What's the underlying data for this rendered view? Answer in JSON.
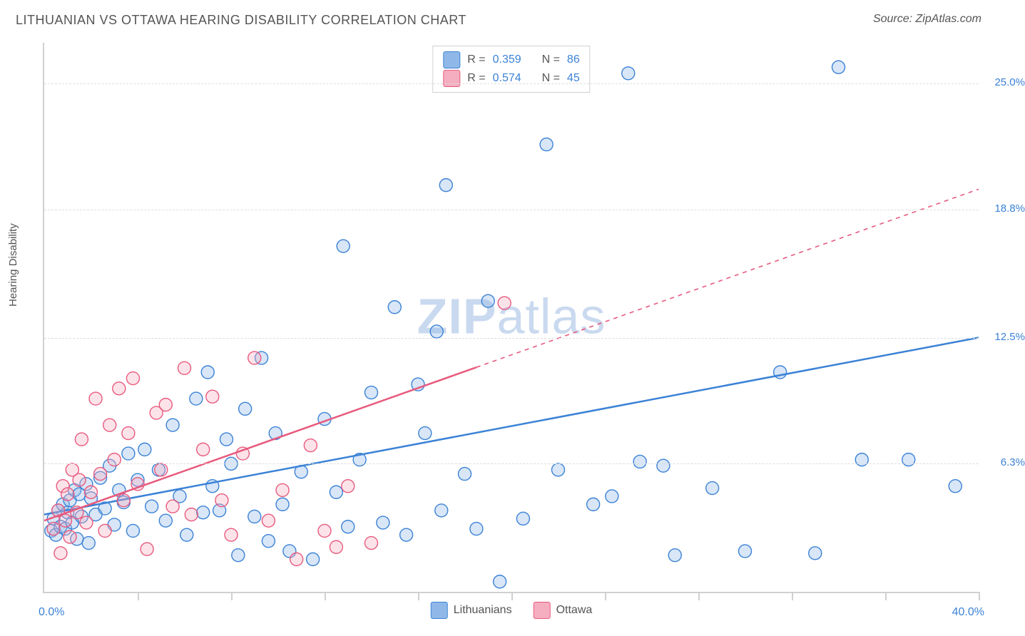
{
  "title": "LITHUANIAN VS OTTAWA HEARING DISABILITY CORRELATION CHART",
  "source": "Source: ZipAtlas.com",
  "y_axis_label": "Hearing Disability",
  "chart": {
    "type": "scatter",
    "xlim": [
      0,
      40
    ],
    "ylim": [
      0,
      27
    ],
    "x_label_min": "0.0%",
    "x_label_max": "40.0%",
    "y_grid": [
      {
        "value": 6.3,
        "label": "6.3%"
      },
      {
        "value": 12.5,
        "label": "12.5%"
      },
      {
        "value": 18.8,
        "label": "18.8%"
      },
      {
        "value": 25.0,
        "label": "25.0%"
      }
    ],
    "x_ticks": [
      4,
      8,
      12,
      16,
      20,
      24,
      28,
      32,
      36,
      40
    ],
    "grid_color": "#dddddd",
    "axis_color": "#d0d0d0",
    "background_color": "#ffffff",
    "marker_radius": 9,
    "marker_fill_opacity": 0.35,
    "marker_stroke_width": 1.4,
    "title_fontsize": 18,
    "label_fontsize": 15
  },
  "series": [
    {
      "key": "lithuanians",
      "name": "Lithuanians",
      "color_stroke": "#3b82d6",
      "color_fill": "#8fb8e8",
      "R": "0.359",
      "N": "86",
      "regression": {
        "start": [
          0,
          3.8
        ],
        "end": [
          40,
          12.5
        ],
        "dash_from_x": null
      },
      "points": [
        [
          0.3,
          3.0
        ],
        [
          0.4,
          3.6
        ],
        [
          0.5,
          2.8
        ],
        [
          0.6,
          4.0
        ],
        [
          0.7,
          3.2
        ],
        [
          0.8,
          4.3
        ],
        [
          0.9,
          3.1
        ],
        [
          1.0,
          3.9
        ],
        [
          1.1,
          4.5
        ],
        [
          1.2,
          3.4
        ],
        [
          1.3,
          5.0
        ],
        [
          1.4,
          2.6
        ],
        [
          1.5,
          4.8
        ],
        [
          1.6,
          3.7
        ],
        [
          1.8,
          5.3
        ],
        [
          1.9,
          2.4
        ],
        [
          2.0,
          4.6
        ],
        [
          2.2,
          3.8
        ],
        [
          2.4,
          5.6
        ],
        [
          2.6,
          4.1
        ],
        [
          2.8,
          6.2
        ],
        [
          3.0,
          3.3
        ],
        [
          3.2,
          5.0
        ],
        [
          3.4,
          4.4
        ],
        [
          3.6,
          6.8
        ],
        [
          3.8,
          3.0
        ],
        [
          4.0,
          5.5
        ],
        [
          4.3,
          7.0
        ],
        [
          4.6,
          4.2
        ],
        [
          4.9,
          6.0
        ],
        [
          5.2,
          3.5
        ],
        [
          5.5,
          8.2
        ],
        [
          5.8,
          4.7
        ],
        [
          6.1,
          2.8
        ],
        [
          6.5,
          9.5
        ],
        [
          6.8,
          3.9
        ],
        [
          7.0,
          10.8
        ],
        [
          7.2,
          5.2
        ],
        [
          7.5,
          4.0
        ],
        [
          7.8,
          7.5
        ],
        [
          8.0,
          6.3
        ],
        [
          8.3,
          1.8
        ],
        [
          8.6,
          9.0
        ],
        [
          9.0,
          3.7
        ],
        [
          9.3,
          11.5
        ],
        [
          9.6,
          2.5
        ],
        [
          9.9,
          7.8
        ],
        [
          10.2,
          4.3
        ],
        [
          10.5,
          2.0
        ],
        [
          11.0,
          5.9
        ],
        [
          11.5,
          1.6
        ],
        [
          12.0,
          8.5
        ],
        [
          12.5,
          4.9
        ],
        [
          12.8,
          17.0
        ],
        [
          13.0,
          3.2
        ],
        [
          13.5,
          6.5
        ],
        [
          14.0,
          9.8
        ],
        [
          14.5,
          3.4
        ],
        [
          15.0,
          14.0
        ],
        [
          15.5,
          2.8
        ],
        [
          16.0,
          10.2
        ],
        [
          16.3,
          7.8
        ],
        [
          16.8,
          12.8
        ],
        [
          17.0,
          4.0
        ],
        [
          17.2,
          20.0
        ],
        [
          18.0,
          5.8
        ],
        [
          18.5,
          3.1
        ],
        [
          19.0,
          14.3
        ],
        [
          19.5,
          0.5
        ],
        [
          20.5,
          3.6
        ],
        [
          21.5,
          22.0
        ],
        [
          22.0,
          6.0
        ],
        [
          23.5,
          4.3
        ],
        [
          24.3,
          4.7
        ],
        [
          25.0,
          25.5
        ],
        [
          25.5,
          6.4
        ],
        [
          26.5,
          6.2
        ],
        [
          27.0,
          1.8
        ],
        [
          28.6,
          5.1
        ],
        [
          30.0,
          2.0
        ],
        [
          31.5,
          10.8
        ],
        [
          33.0,
          1.9
        ],
        [
          34.0,
          25.8
        ],
        [
          35.0,
          6.5
        ],
        [
          37.0,
          6.5
        ],
        [
          39.0,
          5.2
        ]
      ]
    },
    {
      "key": "ottawa",
      "name": "Ottawa",
      "color_stroke": "#e85a7e",
      "color_fill": "#f5aebf",
      "R": "0.574",
      "N": "45",
      "regression": {
        "start": [
          0,
          3.5
        ],
        "end": [
          40,
          19.8
        ],
        "dash_from_x": 18.5
      },
      "points": [
        [
          0.4,
          3.1
        ],
        [
          0.6,
          4.0
        ],
        [
          0.7,
          1.9
        ],
        [
          0.8,
          5.2
        ],
        [
          0.9,
          3.5
        ],
        [
          1.0,
          4.8
        ],
        [
          1.1,
          2.7
        ],
        [
          1.2,
          6.0
        ],
        [
          1.4,
          3.9
        ],
        [
          1.5,
          5.5
        ],
        [
          1.6,
          7.5
        ],
        [
          1.8,
          3.4
        ],
        [
          2.0,
          4.9
        ],
        [
          2.2,
          9.5
        ],
        [
          2.4,
          5.8
        ],
        [
          2.6,
          3.0
        ],
        [
          2.8,
          8.2
        ],
        [
          3.0,
          6.5
        ],
        [
          3.2,
          10.0
        ],
        [
          3.4,
          4.5
        ],
        [
          3.6,
          7.8
        ],
        [
          3.8,
          10.5
        ],
        [
          4.0,
          5.3
        ],
        [
          4.4,
          2.1
        ],
        [
          4.8,
          8.8
        ],
        [
          5.0,
          6.0
        ],
        [
          5.2,
          9.2
        ],
        [
          5.5,
          4.2
        ],
        [
          6.0,
          11.0
        ],
        [
          6.3,
          3.8
        ],
        [
          6.8,
          7.0
        ],
        [
          7.2,
          9.6
        ],
        [
          7.6,
          4.5
        ],
        [
          8.0,
          2.8
        ],
        [
          8.5,
          6.8
        ],
        [
          9.0,
          11.5
        ],
        [
          9.6,
          3.5
        ],
        [
          10.2,
          5.0
        ],
        [
          10.8,
          1.6
        ],
        [
          11.4,
          7.2
        ],
        [
          12.0,
          3.0
        ],
        [
          12.5,
          2.2
        ],
        [
          13.0,
          5.2
        ],
        [
          14.0,
          2.4
        ],
        [
          19.7,
          14.2
        ]
      ]
    }
  ],
  "stats_box": {
    "r_label": "R =",
    "n_label": "N =",
    "value_color": "#3b82d6"
  },
  "watermark": {
    "zip": "ZIP",
    "atlas": "atlas",
    "color": "#c9d9ef"
  },
  "legend": {
    "items": [
      {
        "name": "Lithuanians",
        "fill": "#8fb8e8",
        "stroke": "#3b82d6"
      },
      {
        "name": "Ottawa",
        "fill": "#f5aebf",
        "stroke": "#e85a7e"
      }
    ]
  }
}
